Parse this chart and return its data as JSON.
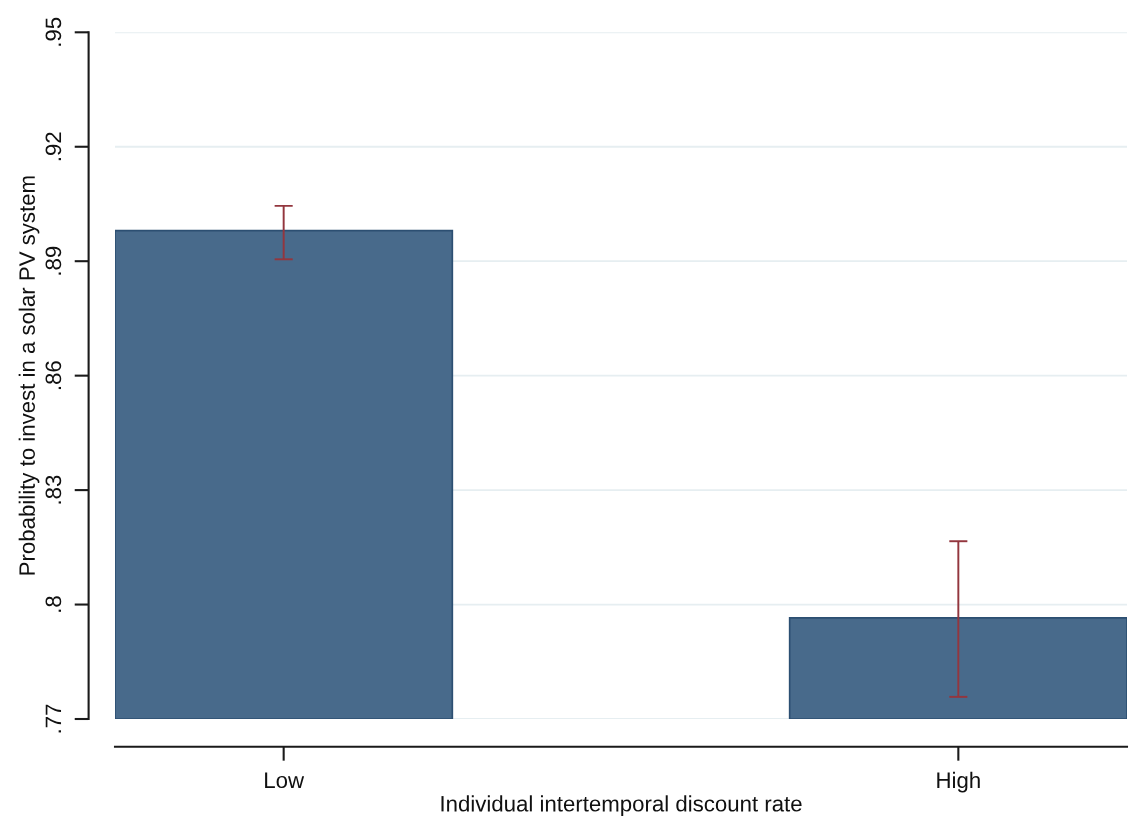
{
  "chart_data": {
    "type": "bar",
    "xlabel": "Individual intertemporal discount rate",
    "ylabel": "Probability to invest in a solar PV system",
    "categories": [
      "Low",
      "High"
    ],
    "values": [
      0.898,
      0.7965
    ],
    "color": "#486a8b",
    "errors": [
      [
        0.8905,
        0.9045
      ],
      [
        0.7758,
        0.8166
      ]
    ],
    "ylim": [
      0.77,
      0.95
    ],
    "yticks": [
      {
        "value": 0.77,
        "label": ".77"
      },
      {
        "value": 0.8,
        "label": ".8"
      },
      {
        "value": 0.83,
        "label": ".83"
      },
      {
        "value": 0.86,
        "label": ".86"
      },
      {
        "value": 0.89,
        "label": ".89"
      },
      {
        "value": 0.92,
        "label": ".92"
      },
      {
        "value": 0.95,
        "label": ".95"
      }
    ],
    "grid": "y"
  }
}
